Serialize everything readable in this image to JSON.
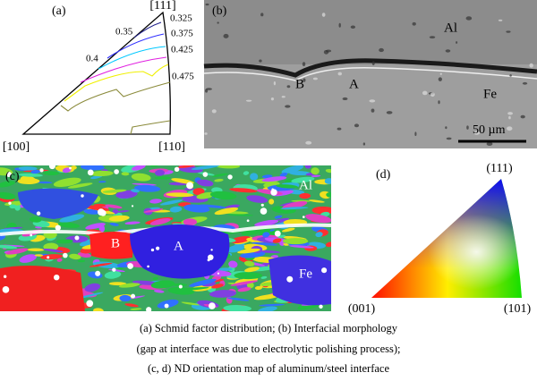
{
  "panel_a": {
    "label": "(a)",
    "vertices": {
      "top": "[111]",
      "left": "[100]",
      "right": "[110]"
    },
    "contours": [
      "0.325",
      "0.35",
      "0.375",
      "0.4",
      "0.425",
      "0.475"
    ]
  },
  "panel_b": {
    "label": "(b)",
    "regions": [
      "Al",
      "B",
      "A",
      "Fe"
    ],
    "scale_bar": "50 µm"
  },
  "panel_c": {
    "label": "(c)",
    "regions": [
      "Al",
      "B",
      "A",
      "Fe"
    ]
  },
  "panel_d": {
    "label": "(d)",
    "vertices": {
      "top": "(111)",
      "left": "(001)",
      "right": "(101)"
    }
  },
  "caption": [
    "(a) Schmid factor distribution; (b) Interfacial morphology",
    "(gap at interface was due to electrolytic polishing process);",
    "(c, d) ND orientation map of aluminum/steel interface"
  ]
}
